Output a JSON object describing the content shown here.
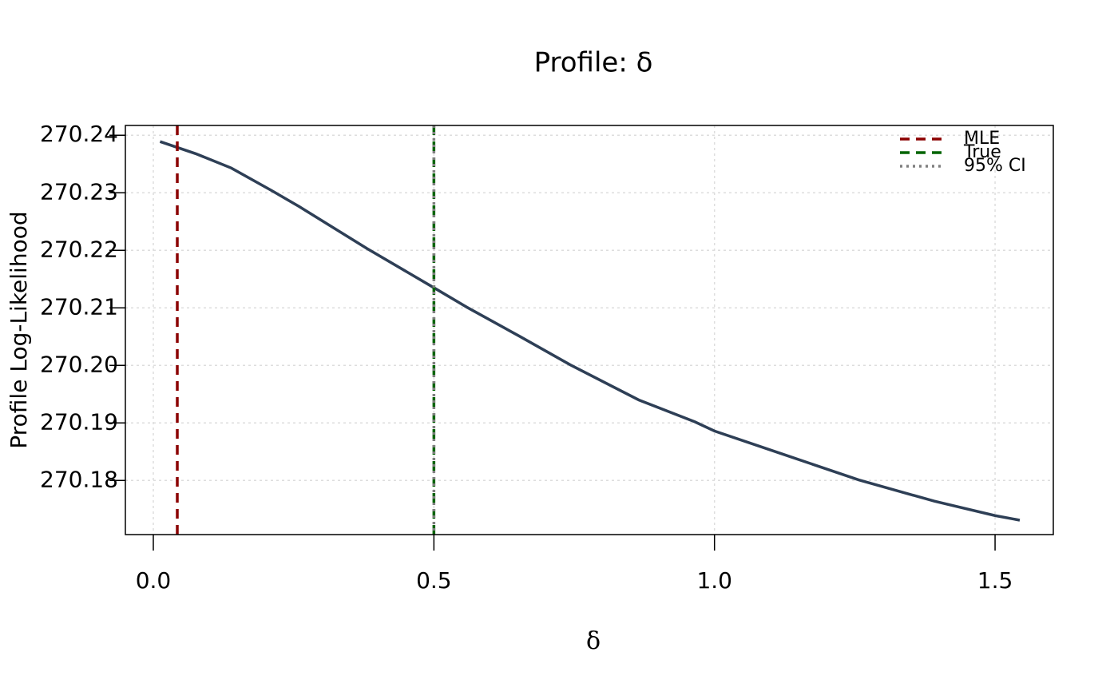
{
  "chart_data": {
    "type": "line",
    "title": "Profile: δ",
    "xlabel": "δ",
    "ylabel": "Profile Log-Likelihood",
    "x": [
      0.012,
      0.0754,
      0.139,
      0.2106,
      0.26,
      0.381,
      0.5,
      0.559,
      0.652,
      0.743,
      0.865,
      0.965,
      1.0,
      1.121,
      1.257,
      1.392,
      1.5,
      1.544
    ],
    "values": [
      270.2389,
      270.2368,
      270.2343,
      270.2304,
      270.2276,
      270.2203,
      270.2135,
      270.2101,
      270.2051,
      270.2001,
      270.194,
      270.1902,
      270.1886,
      270.1846,
      270.1801,
      270.1764,
      270.1739,
      270.1731
    ],
    "color": "#2e3f56",
    "vlines": [
      {
        "name": "MLE",
        "x": 0.0427,
        "color": "#8b0000",
        "dash": "dashed"
      },
      {
        "name": "True",
        "x": 0.5,
        "color": "#006400",
        "dash": "dashed"
      },
      {
        "name": "95% CI",
        "x": 0.5,
        "color": "#808080",
        "dash": "dotted"
      }
    ],
    "xlim": [
      -0.0498,
      1.6038
    ],
    "ylim": [
      270.1706,
      270.2417
    ],
    "xticks": [
      {
        "value": 0,
        "label": "0.0"
      },
      0.5,
      {
        "value": 1,
        "label": "1.0"
      },
      1.5
    ],
    "yticks": [
      270.18,
      270.19,
      {
        "value": 270.2,
        "label": "270.20"
      },
      270.21,
      270.22,
      270.23,
      270.24
    ],
    "grid": true,
    "legend": "top-right"
  }
}
